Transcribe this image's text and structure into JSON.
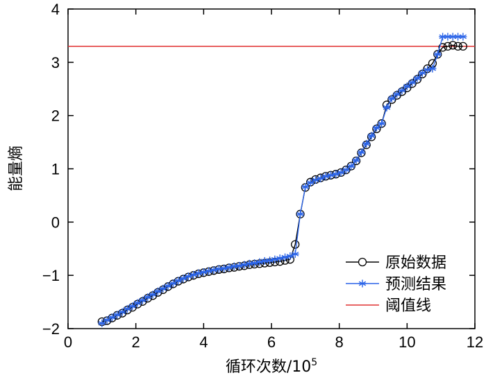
{
  "chart_data": {
    "type": "line",
    "xlabel": "循环次数/10",
    "xlabel_exp": "5",
    "ylabel": "能量熵",
    "xlim": [
      0,
      12
    ],
    "ylim": [
      -2,
      4
    ],
    "xticks": [
      0,
      2,
      4,
      6,
      8,
      10,
      12
    ],
    "yticks": [
      -2,
      -1,
      0,
      1,
      2,
      3,
      4
    ],
    "xtick_labels": [
      "0",
      "2",
      "4",
      "6",
      "8",
      "10",
      "12"
    ],
    "ytick_labels": [
      "−2",
      "−1",
      "0",
      "1",
      "2",
      "3",
      "4"
    ],
    "grid": false,
    "legend_position": "bottom-right",
    "threshold": {
      "name": "阈值线",
      "value": 3.3,
      "color": "#e03030"
    },
    "series": [
      {
        "name": "原始数据",
        "color": "#000000",
        "marker": "circle",
        "x": [
          1.0,
          1.15,
          1.3,
          1.45,
          1.6,
          1.75,
          1.9,
          2.05,
          2.2,
          2.35,
          2.5,
          2.65,
          2.8,
          2.95,
          3.1,
          3.25,
          3.4,
          3.55,
          3.7,
          3.85,
          4.0,
          4.15,
          4.3,
          4.45,
          4.6,
          4.75,
          4.9,
          5.05,
          5.2,
          5.35,
          5.5,
          5.65,
          5.8,
          5.95,
          6.1,
          6.25,
          6.4,
          6.55,
          6.7,
          6.85,
          7.0,
          7.15,
          7.3,
          7.45,
          7.6,
          7.75,
          7.9,
          8.05,
          8.2,
          8.35,
          8.5,
          8.65,
          8.8,
          8.95,
          9.1,
          9.25,
          9.4,
          9.55,
          9.7,
          9.85,
          10.0,
          10.15,
          10.3,
          10.45,
          10.6,
          10.75,
          10.9,
          11.05,
          11.2,
          11.35,
          11.5,
          11.65
        ],
        "y": [
          -1.87,
          -1.85,
          -1.8,
          -1.75,
          -1.71,
          -1.65,
          -1.6,
          -1.54,
          -1.49,
          -1.43,
          -1.38,
          -1.32,
          -1.27,
          -1.21,
          -1.16,
          -1.11,
          -1.07,
          -1.03,
          -1.0,
          -0.97,
          -0.95,
          -0.93,
          -0.91,
          -0.89,
          -0.88,
          -0.86,
          -0.85,
          -0.83,
          -0.82,
          -0.8,
          -0.79,
          -0.78,
          -0.77,
          -0.76,
          -0.75,
          -0.74,
          -0.72,
          -0.7,
          -0.42,
          0.15,
          0.65,
          0.75,
          0.8,
          0.83,
          0.86,
          0.88,
          0.9,
          0.93,
          0.98,
          1.05,
          1.15,
          1.3,
          1.45,
          1.6,
          1.75,
          1.85,
          2.2,
          2.3,
          2.38,
          2.45,
          2.52,
          2.6,
          2.68,
          2.78,
          2.88,
          2.98,
          3.15,
          3.28,
          3.3,
          3.32,
          3.3,
          3.3
        ],
        "y_note": ""
      },
      {
        "name": "预测结果",
        "color": "#2b64e8",
        "marker": "star",
        "x": [
          1.0,
          1.15,
          1.3,
          1.45,
          1.6,
          1.75,
          1.9,
          2.05,
          2.2,
          2.35,
          2.5,
          2.65,
          2.8,
          2.95,
          3.1,
          3.25,
          3.4,
          3.55,
          3.7,
          3.85,
          4.0,
          4.15,
          4.3,
          4.45,
          4.6,
          4.75,
          4.9,
          5.05,
          5.2,
          5.35,
          5.5,
          5.65,
          5.8,
          5.95,
          6.1,
          6.25,
          6.4,
          6.55,
          6.7,
          6.85,
          7.0,
          7.15,
          7.3,
          7.45,
          7.6,
          7.75,
          7.9,
          8.05,
          8.2,
          8.35,
          8.5,
          8.65,
          8.8,
          8.95,
          9.1,
          9.25,
          9.4,
          9.55,
          9.7,
          9.85,
          10.0,
          10.15,
          10.3,
          10.45,
          10.6,
          10.75,
          10.9,
          11.05,
          11.2,
          11.35,
          11.5,
          11.65
        ],
        "y": [
          -1.9,
          -1.84,
          -1.79,
          -1.74,
          -1.69,
          -1.63,
          -1.58,
          -1.52,
          -1.47,
          -1.41,
          -1.36,
          -1.3,
          -1.25,
          -1.2,
          -1.15,
          -1.1,
          -1.06,
          -1.02,
          -0.99,
          -0.96,
          -0.94,
          -0.92,
          -0.9,
          -0.88,
          -0.87,
          -0.85,
          -0.83,
          -0.82,
          -0.8,
          -0.78,
          -0.77,
          -0.75,
          -0.73,
          -0.72,
          -0.7,
          -0.68,
          -0.66,
          -0.64,
          -0.6,
          0.15,
          0.66,
          0.74,
          0.79,
          0.82,
          0.86,
          0.88,
          0.9,
          0.93,
          0.98,
          1.05,
          1.16,
          1.31,
          1.47,
          1.62,
          1.77,
          1.85,
          2.15,
          2.32,
          2.4,
          2.47,
          2.55,
          2.62,
          2.7,
          2.8,
          2.86,
          2.88,
          3.15,
          3.48,
          3.48,
          3.48,
          3.48,
          3.48
        ]
      }
    ]
  },
  "legend": [
    {
      "label": "原始数据",
      "color": "#000000",
      "marker": "circle"
    },
    {
      "label": "预测结果",
      "color": "#2b64e8",
      "marker": "star"
    },
    {
      "label": "阈值线",
      "color": "#e03030",
      "marker": "none"
    }
  ]
}
